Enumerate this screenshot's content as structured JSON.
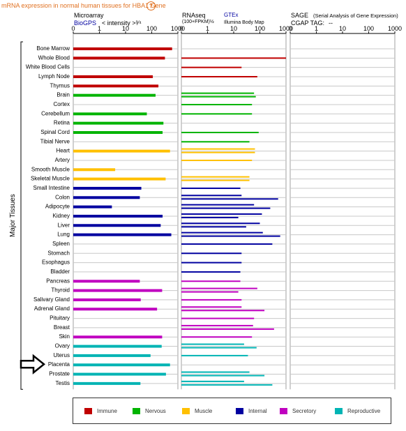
{
  "header": {
    "title": "mRNA expression in normal human tissues for HBA1 Gene",
    "help_symbol": "?"
  },
  "panels": {
    "microarray": {
      "title": "Microarray",
      "source": "BioGPS",
      "unit": "< intensity >³⁄⁴"
    },
    "rnaseq": {
      "title": "RNAseq",
      "unit": "(100+FPKM)½",
      "source": "GTEx",
      "source_sub": "Illumina Body Map"
    },
    "sage": {
      "title": "SAGE",
      "subtitle": "(Serial Analysis of Gene Expression)",
      "tag_label": "CGAP TAG:",
      "tag_value": "--"
    }
  },
  "axis_ticks": [
    "0",
    "1",
    "10",
    "100",
    "1000"
  ],
  "side_label": "Major Tissues",
  "legend": [
    {
      "label": "Immune",
      "color": "#c00000"
    },
    {
      "label": "Nervous",
      "color": "#00b400"
    },
    {
      "label": "Muscle",
      "color": "#ffc000"
    },
    {
      "label": "Internal",
      "color": "#0000a0"
    },
    {
      "label": "Secretory",
      "color": "#c000c0"
    },
    {
      "label": "Reproductive",
      "color": "#00b4b4"
    }
  ],
  "chart_data": {
    "type": "bar",
    "scale": "log",
    "xlim": [
      0,
      1000
    ],
    "categories": [
      "Bone Marrow",
      "Whole Blood",
      "White Blood Cells",
      "Lymph Node",
      "Thymus",
      "Brain",
      "Cortex",
      "Cerebellum",
      "Retina",
      "Spinal Cord",
      "Tibial Nerve",
      "Heart",
      "Artery",
      "Smooth Muscle",
      "Skeletal Muscle",
      "Small Intestine",
      "Colon",
      "Adipocyte",
      "Kidney",
      "Liver",
      "Lung",
      "Spleen",
      "Stomach",
      "Esophagus",
      "Bladder",
      "Pancreas",
      "Thyroid",
      "Salivary Gland",
      "Adrenal Gland",
      "Pituitary",
      "Breast",
      "Skin",
      "Ovary",
      "Uterus",
      "Placenta",
      "Prostate",
      "Testis"
    ],
    "groups": [
      "Immune",
      "Immune",
      "Immune",
      "Immune",
      "Immune",
      "Nervous",
      "Nervous",
      "Nervous",
      "Nervous",
      "Nervous",
      "Nervous",
      "Muscle",
      "Muscle",
      "Muscle",
      "Muscle",
      "Internal",
      "Internal",
      "Internal",
      "Internal",
      "Internal",
      "Internal",
      "Internal",
      "Internal",
      "Internal",
      "Internal",
      "Secretory",
      "Secretory",
      "Secretory",
      "Secretory",
      "Secretory",
      "Secretory",
      "Secretory",
      "Reproductive",
      "Reproductive",
      "Reproductive",
      "Reproductive",
      "Reproductive"
    ],
    "microarray": [
      600,
      320,
      null,
      110,
      180,
      140,
      null,
      65,
      280,
      260,
      null,
      500,
      null,
      4,
      340,
      40,
      35,
      3,
      260,
      220,
      560,
      null,
      null,
      null,
      null,
      35,
      250,
      38,
      160,
      null,
      null,
      250,
      240,
      90,
      500,
      350,
      37
    ],
    "rnaseq": [
      [],
      [
        1200
      ],
      [
        20
      ],
      [
        80
      ],
      [],
      [
        60,
        70
      ],
      [
        50
      ],
      [
        50
      ],
      [],
      [
        90
      ],
      [
        40
      ],
      [
        65,
        65
      ],
      [
        50
      ],
      [],
      [
        40,
        40
      ],
      [
        18
      ],
      [
        20,
        500
      ],
      [
        60,
        250
      ],
      [
        120,
        15
      ],
      [
        100,
        30
      ],
      [
        130,
        600
      ],
      [
        300
      ],
      [
        20
      ],
      [
        20
      ],
      [
        18
      ],
      [
        18
      ],
      [
        80,
        15
      ],
      [
        20
      ],
      [
        20,
        150
      ],
      [
        60
      ],
      [
        55,
        350
      ],
      [
        50
      ],
      [
        25,
        75
      ],
      [
        35
      ],
      [],
      [
        40,
        150
      ],
      [
        25,
        300
      ]
    ]
  },
  "annotation": {
    "arrow_target": "Placenta"
  }
}
